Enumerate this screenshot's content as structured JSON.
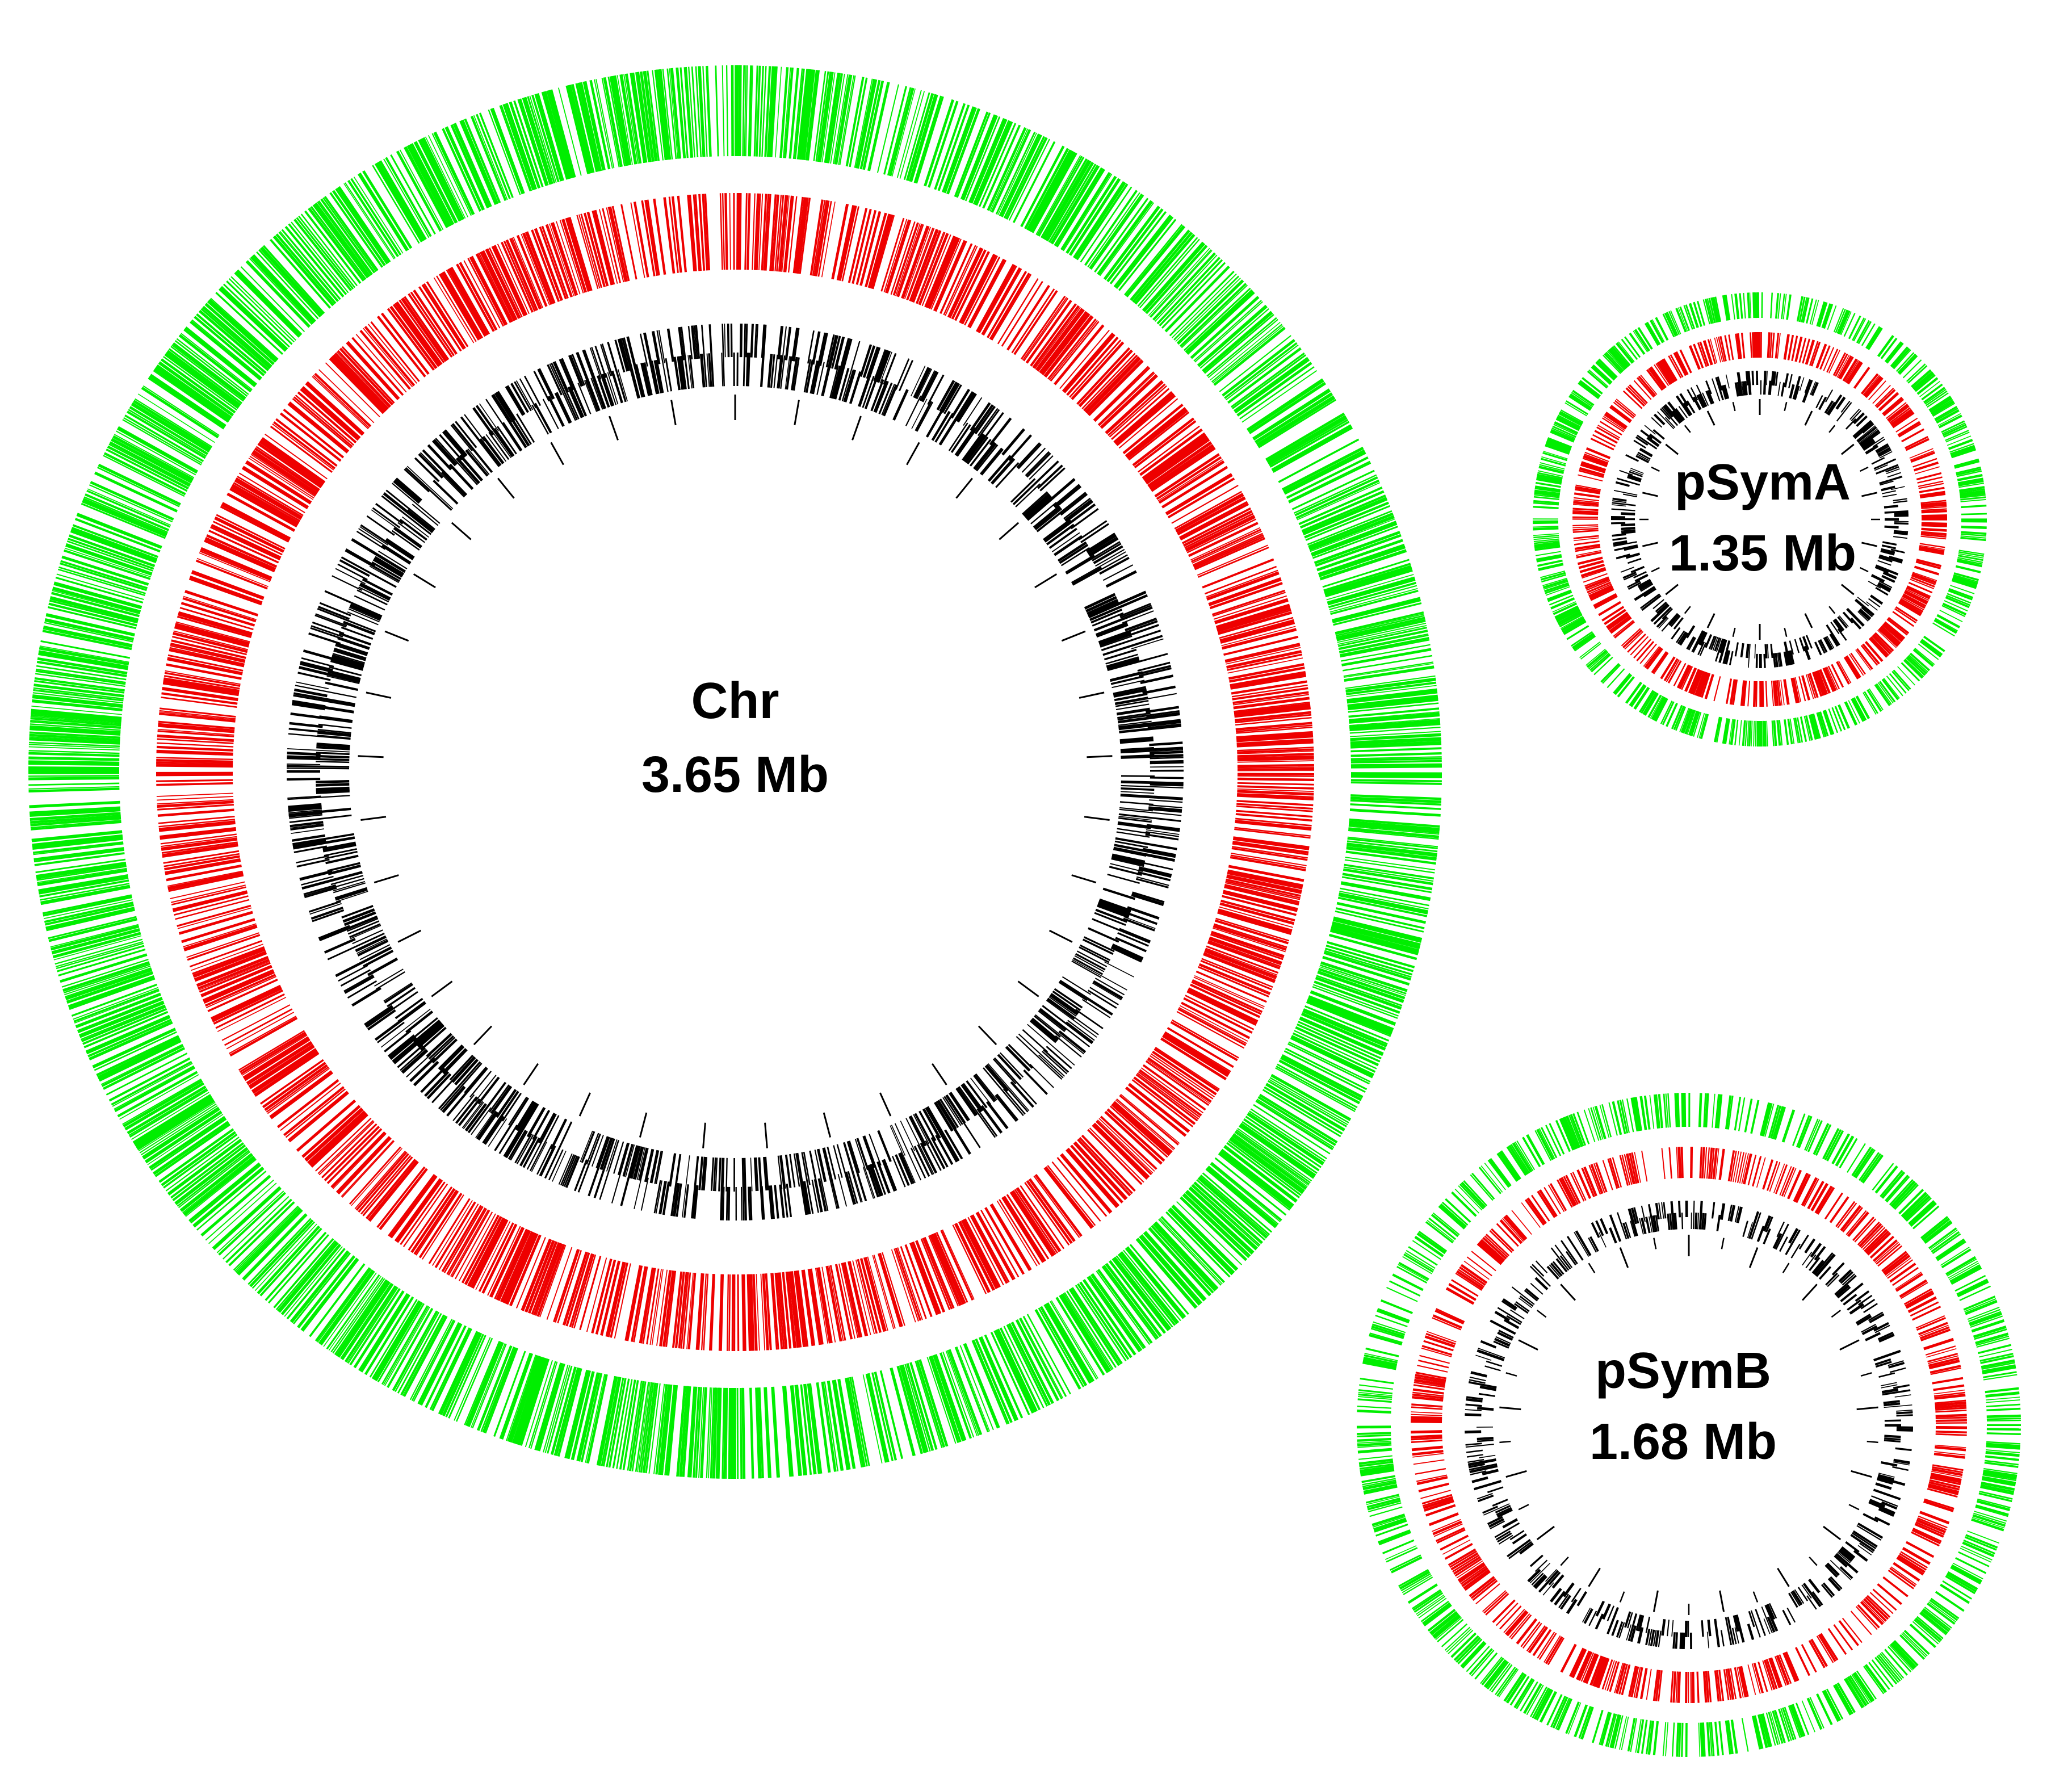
{
  "figure": {
    "colors": {
      "outer_track": "#00ee00",
      "middle_track": "#ee0000",
      "inner_track": "#000000",
      "scale_ticks": "#000000",
      "background": "#ffffff"
    },
    "replicons": [
      {
        "id": "chr",
        "name": "Chr",
        "size_label": "3.65 Mb",
        "size_mb": 3.65
      },
      {
        "id": "psyma",
        "name": "pSymA",
        "size_label": "1.35 Mb",
        "size_mb": 1.35
      },
      {
        "id": "psymb",
        "name": "pSymB",
        "size_label": "1.68 Mb",
        "size_mb": 1.68
      }
    ]
  }
}
